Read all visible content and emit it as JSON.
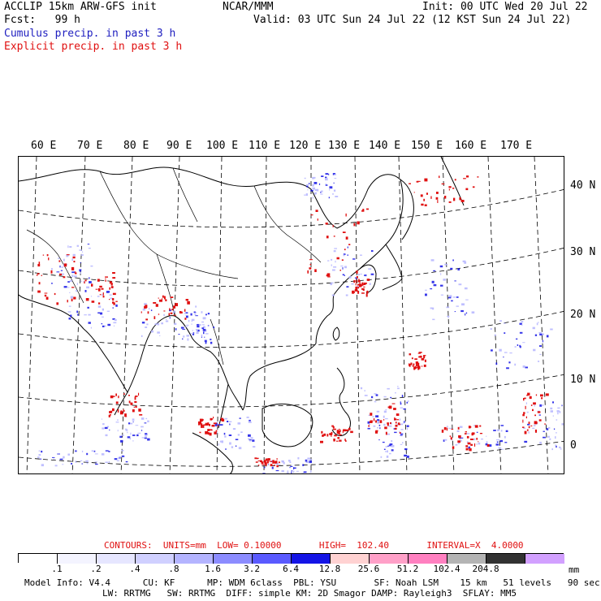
{
  "header": {
    "left_line1": "ACCLIP 15km ARW-GFS init",
    "left_line2": "Fcst:   99 h",
    "center": "NCAR/MMM",
    "init": "Init: 00 UTC Wed 20 Jul 22",
    "valid": "Valid: 03 UTC Sun 24 Jul 22 (12 KST Sun 24 Jul 22)",
    "cumulus": "Cumulus precip. in past 3 h",
    "explicit": "Explicit precip. in past 3 h"
  },
  "colors": {
    "cumulus": "#2020c0",
    "explicit": "#e01010",
    "contour": "#ee1111",
    "coast": "#000000"
  },
  "map": {
    "lon_labels": [
      "60 E",
      "70 E",
      "80 E",
      "90 E",
      "100 E",
      "110 E",
      "120 E",
      "130 E",
      "140 E",
      "150 E",
      "160 E",
      "170 E"
    ],
    "lat_labels": [
      "40 N",
      "30 N",
      "20 N",
      "10 N",
      "0"
    ]
  },
  "footer": {
    "contours": "CONTOURS:  UNITS=mm  LOW= 0.10000       HIGH=  102.40       INTERVAL=X  4.0000",
    "units": "mm",
    "colorbar": {
      "labels": [
        ".1",
        ".2",
        ".4",
        ".8",
        "1.6",
        "3.2",
        "6.4",
        "12.8",
        "25.6",
        "51.2",
        "102.4",
        "204.8"
      ],
      "colors": [
        "#ffffff",
        "#f4f4ff",
        "#e6e6ff",
        "#d0d0ff",
        "#b4b4ff",
        "#8c8cff",
        "#5a5aff",
        "#1414e6",
        "#ffd2d2",
        "#ffa0c8",
        "#ff80c0",
        "#b4b4b4",
        "#323232",
        "#d2a0ff"
      ]
    },
    "model_line1": "Model Info: V4.4      CU: KF      MP: WDM 6class  PBL: YSU       SF: Noah LSM    15 km   51 levels   90 sec",
    "model_line2": "LW: RRTMG   SW: RRTMG  DIFF: simple KM: 2D Smagor DAMP: Rayleigh3  SFLAY: MM5"
  }
}
